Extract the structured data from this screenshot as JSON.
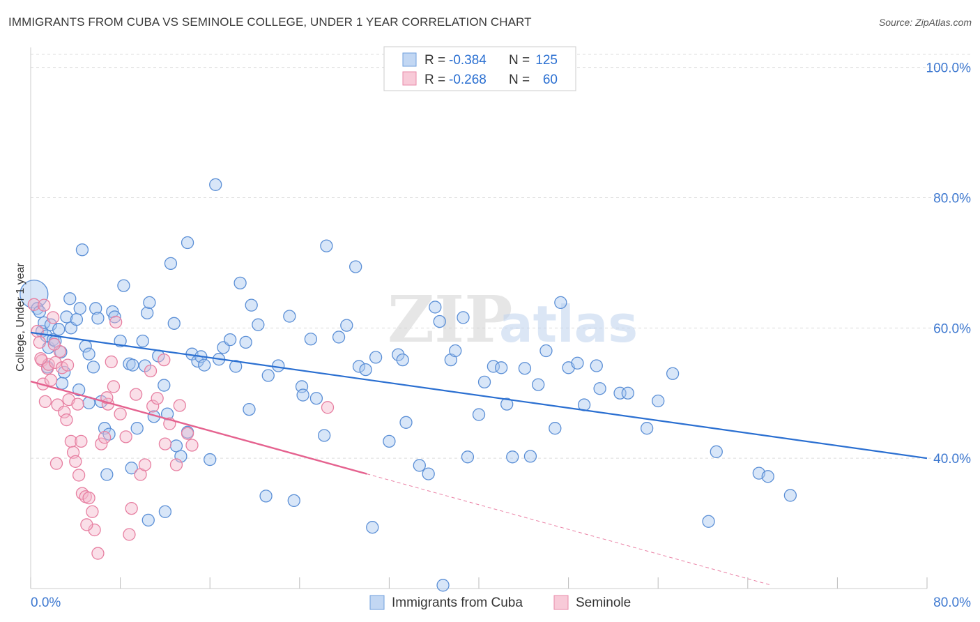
{
  "title": "IMMIGRANTS FROM CUBA VS SEMINOLE COLLEGE, UNDER 1 YEAR CORRELATION CHART",
  "source": "Source: ZipAtlas.com",
  "watermark": {
    "zip": "ZIP",
    "atlas": "atlas"
  },
  "colors": {
    "blue_fill": "#a9c8f0",
    "blue_stroke": "#5b8fd6",
    "blue_line": "#2a6fd1",
    "pink_fill": "#f5b8cb",
    "pink_stroke": "#e77fa1",
    "pink_line": "#e5628f",
    "tick_label": "#3d78d0",
    "grid": "#dcdcdc"
  },
  "legend": {
    "rows": [
      {
        "r_label": "R =",
        "r_value": "-0.384",
        "n_label": "N =",
        "n_value": "125"
      },
      {
        "r_label": "R =",
        "r_value": "-0.268",
        "n_label": "N =",
        "n_value": "60"
      }
    ]
  },
  "chart_data": {
    "type": "scatter",
    "xlabel": "",
    "ylabel": "College, Under 1 year",
    "xlim": [
      0,
      80
    ],
    "ylim": [
      20,
      102
    ],
    "x_tick_labels": [
      "0.0%",
      "80.0%"
    ],
    "y_ticks": [
      40,
      60,
      80,
      100
    ],
    "y_tick_labels": [
      "40.0%",
      "60.0%",
      "80.0%",
      "100.0%"
    ],
    "grid": true,
    "legend_position": "top-center",
    "series": [
      {
        "name": "Immigrants from Cuba",
        "trend": {
          "x": [
            0,
            80
          ],
          "y": [
            59.3,
            40.0
          ]
        },
        "points": [
          [
            0.3,
            65.2
          ],
          [
            0.6,
            63.0
          ],
          [
            0.8,
            62.5
          ],
          [
            1.0,
            59.5
          ],
          [
            1.2,
            60.8
          ],
          [
            1.4,
            58.8
          ],
          [
            1.6,
            57.0
          ],
          [
            1.8,
            60.5
          ],
          [
            2.0,
            58.2
          ],
          [
            2.2,
            58.0
          ],
          [
            2.5,
            59.8
          ],
          [
            2.7,
            56.3
          ],
          [
            3.0,
            53.2
          ],
          [
            3.2,
            61.7
          ],
          [
            3.5,
            64.5
          ],
          [
            3.6,
            60.0
          ],
          [
            4.1,
            61.3
          ],
          [
            4.4,
            63.0
          ],
          [
            4.6,
            72.0
          ],
          [
            4.9,
            57.2
          ],
          [
            5.2,
            56.0
          ],
          [
            5.6,
            54.0
          ],
          [
            5.8,
            63.0
          ],
          [
            6.0,
            61.5
          ],
          [
            6.3,
            48.7
          ],
          [
            6.6,
            44.6
          ],
          [
            7.0,
            43.7
          ],
          [
            7.3,
            62.5
          ],
          [
            7.5,
            61.7
          ],
          [
            8.0,
            58.0
          ],
          [
            8.3,
            66.5
          ],
          [
            8.8,
            54.5
          ],
          [
            9.1,
            54.3
          ],
          [
            9.5,
            44.6
          ],
          [
            10.0,
            58.0
          ],
          [
            10.2,
            54.2
          ],
          [
            10.4,
            62.3
          ],
          [
            10.6,
            63.9
          ],
          [
            11.0,
            46.4
          ],
          [
            11.4,
            55.7
          ],
          [
            11.9,
            51.2
          ],
          [
            12.2,
            46.8
          ],
          [
            12.5,
            69.9
          ],
          [
            13.0,
            41.9
          ],
          [
            13.4,
            40.3
          ],
          [
            14.0,
            44.0
          ],
          [
            14.4,
            56.0
          ],
          [
            14.9,
            54.9
          ],
          [
            15.2,
            55.6
          ],
          [
            15.5,
            54.3
          ],
          [
            16.0,
            39.8
          ],
          [
            16.8,
            55.2
          ],
          [
            17.2,
            57.0
          ],
          [
            17.8,
            58.2
          ],
          [
            18.3,
            54.1
          ],
          [
            18.7,
            66.9
          ],
          [
            19.2,
            57.8
          ],
          [
            19.7,
            63.5
          ],
          [
            20.3,
            60.5
          ],
          [
            21.2,
            52.7
          ],
          [
            22.1,
            54.2
          ],
          [
            23.1,
            61.8
          ],
          [
            24.2,
            51.0
          ],
          [
            25.0,
            58.3
          ],
          [
            25.5,
            49.2
          ],
          [
            26.4,
            72.6
          ],
          [
            27.5,
            58.6
          ],
          [
            28.2,
            60.4
          ],
          [
            29.0,
            69.4
          ],
          [
            29.3,
            54.1
          ],
          [
            29.9,
            53.6
          ],
          [
            30.8,
            55.5
          ],
          [
            32.0,
            42.6
          ],
          [
            32.8,
            55.9
          ],
          [
            33.2,
            55.1
          ],
          [
            34.7,
            38.9
          ],
          [
            35.5,
            37.6
          ],
          [
            36.1,
            63.2
          ],
          [
            36.5,
            61.0
          ],
          [
            37.5,
            55.1
          ],
          [
            37.9,
            56.5
          ],
          [
            39.0,
            40.2
          ],
          [
            40.0,
            46.7
          ],
          [
            41.3,
            54.1
          ],
          [
            42.0,
            53.9
          ],
          [
            43.0,
            40.2
          ],
          [
            44.1,
            53.8
          ],
          [
            45.3,
            51.3
          ],
          [
            46.0,
            56.5
          ],
          [
            46.8,
            44.6
          ],
          [
            48.0,
            53.9
          ],
          [
            48.8,
            54.6
          ],
          [
            50.5,
            54.2
          ],
          [
            50.8,
            50.7
          ],
          [
            52.6,
            50.0
          ],
          [
            53.3,
            50.0
          ],
          [
            55.0,
            44.6
          ],
          [
            56.0,
            48.8
          ],
          [
            57.3,
            53.0
          ],
          [
            60.5,
            30.3
          ],
          [
            61.2,
            41.0
          ],
          [
            65.0,
            37.7
          ],
          [
            65.8,
            37.2
          ],
          [
            67.8,
            34.3
          ],
          [
            1.5,
            54.0
          ],
          [
            2.8,
            51.5
          ],
          [
            4.3,
            50.5
          ],
          [
            5.2,
            48.5
          ],
          [
            6.8,
            37.5
          ],
          [
            9.0,
            38.5
          ],
          [
            10.5,
            30.5
          ],
          [
            12.0,
            31.8
          ],
          [
            12.8,
            60.7
          ],
          [
            14.0,
            73.1
          ],
          [
            16.5,
            82.0
          ],
          [
            19.5,
            47.5
          ],
          [
            21.0,
            34.2
          ],
          [
            23.5,
            33.5
          ],
          [
            24.3,
            49.7
          ],
          [
            26.2,
            43.5
          ],
          [
            30.5,
            29.4
          ],
          [
            33.5,
            45.5
          ],
          [
            36.8,
            20.5
          ],
          [
            38.6,
            61.6
          ],
          [
            40.5,
            51.7
          ],
          [
            42.5,
            48.3
          ],
          [
            44.6,
            40.3
          ],
          [
            47.3,
            63.9
          ],
          [
            49.4,
            48.2
          ]
        ]
      },
      {
        "name": "Seminole",
        "trend": {
          "x": [
            0,
            30
          ],
          "y": [
            51.8,
            37.6
          ]
        },
        "points": [
          [
            0.3,
            63.6
          ],
          [
            0.6,
            59.5
          ],
          [
            0.8,
            57.8
          ],
          [
            1.0,
            55.0
          ],
          [
            1.1,
            51.4
          ],
          [
            1.3,
            48.7
          ],
          [
            1.5,
            53.8
          ],
          [
            1.6,
            54.4
          ],
          [
            1.8,
            52.0
          ],
          [
            2.0,
            61.6
          ],
          [
            2.2,
            54.7
          ],
          [
            2.4,
            48.2
          ],
          [
            2.6,
            56.4
          ],
          [
            2.8,
            53.9
          ],
          [
            3.0,
            47.1
          ],
          [
            3.2,
            45.9
          ],
          [
            3.4,
            49.0
          ],
          [
            3.6,
            42.6
          ],
          [
            3.8,
            40.9
          ],
          [
            4.0,
            39.5
          ],
          [
            4.3,
            37.4
          ],
          [
            4.6,
            34.6
          ],
          [
            4.9,
            34.1
          ],
          [
            5.2,
            33.9
          ],
          [
            5.5,
            31.8
          ],
          [
            5.7,
            29.0
          ],
          [
            6.0,
            25.4
          ],
          [
            6.3,
            42.2
          ],
          [
            6.6,
            43.2
          ],
          [
            6.9,
            48.3
          ],
          [
            7.2,
            54.8
          ],
          [
            7.6,
            60.9
          ],
          [
            8.0,
            46.8
          ],
          [
            8.5,
            43.3
          ],
          [
            9.0,
            32.3
          ],
          [
            9.4,
            49.8
          ],
          [
            9.8,
            37.5
          ],
          [
            10.2,
            39.0
          ],
          [
            10.9,
            48.0
          ],
          [
            11.3,
            49.2
          ],
          [
            12.0,
            42.2
          ],
          [
            12.4,
            45.3
          ],
          [
            13.0,
            39.0
          ],
          [
            13.3,
            48.1
          ],
          [
            14.0,
            43.8
          ],
          [
            14.4,
            42.0
          ],
          [
            5.0,
            29.8
          ],
          [
            3.3,
            54.3
          ],
          [
            1.2,
            63.5
          ],
          [
            2.1,
            57.5
          ],
          [
            4.5,
            42.6
          ],
          [
            6.8,
            49.3
          ],
          [
            8.8,
            28.3
          ],
          [
            10.7,
            53.4
          ],
          [
            11.9,
            55.1
          ],
          [
            4.2,
            48.3
          ],
          [
            2.3,
            39.2
          ],
          [
            7.4,
            51.0
          ],
          [
            0.9,
            55.3
          ],
          [
            26.5,
            47.8
          ]
        ]
      }
    ]
  }
}
